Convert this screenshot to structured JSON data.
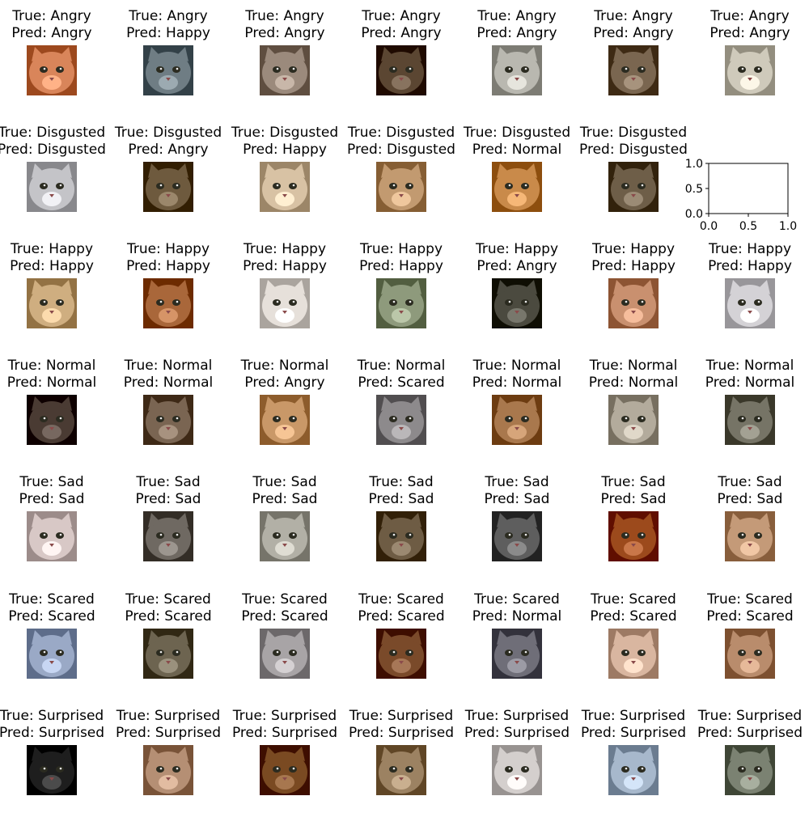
{
  "true_prefix": "True: ",
  "pred_prefix": "Pred: ",
  "rows": [
    {
      "true_label": "Angry",
      "preds": [
        "Angry",
        "Happy",
        "Angry",
        "Angry",
        "Angry",
        "Angry",
        "Angry"
      ],
      "colors": [
        "#d9855a",
        "#6f7d84",
        "#9b8a7c",
        "#5b4632",
        "#b9b8b0",
        "#7a6650",
        "#cfcabb"
      ]
    },
    {
      "true_label": "Disgusted",
      "preds": [
        "Disgusted",
        "Angry",
        "Happy",
        "Disgusted",
        "Normal",
        "Disgusted",
        null
      ],
      "colors": [
        "#c4c4c8",
        "#6e5a3e",
        "#d8c2a4",
        "#c29a70",
        "#c98a4a",
        "#6e5e48",
        null
      ]
    },
    {
      "true_label": "Happy",
      "preds": [
        "Happy",
        "Happy",
        "Happy",
        "Happy",
        "Angry",
        "Happy",
        "Happy"
      ],
      "colors": [
        "#cfae80",
        "#a9673a",
        "#e6e0da",
        "#8e9a7c",
        "#4b4a3f",
        "#c9906f",
        "#d4d2d6"
      ]
    },
    {
      "true_label": "Normal",
      "preds": [
        "Normal",
        "Normal",
        "Angry",
        "Scared",
        "Normal",
        "Normal",
        "Normal"
      ],
      "colors": [
        "#4a3b33",
        "#7a6552",
        "#c99868",
        "#8d8a8c",
        "#a9784d",
        "#b3ab9c",
        "#767466"
      ]
    },
    {
      "true_label": "Sad",
      "preds": [
        "Sad",
        "Sad",
        "Sad",
        "Sad",
        "Sad",
        "Sad",
        "Sad"
      ],
      "colors": [
        "#d8c8c6",
        "#6f6962",
        "#b2b0a6",
        "#6e5c44",
        "#5e5e5e",
        "#9c4a1c",
        "#c49a78"
      ]
    },
    {
      "true_label": "Scared",
      "preds": [
        "Scared",
        "Scared",
        "Scared",
        "Scared",
        "Normal",
        "Scared",
        "Scared"
      ],
      "colors": [
        "#9aa9c6",
        "#6d6450",
        "#a8a4a6",
        "#7a4a2a",
        "#6f6e78",
        "#d9b6a0",
        "#b98c6c"
      ]
    },
    {
      "true_label": "Surprised",
      "preds": [
        "Surprised",
        "Surprised",
        "Surprised",
        "Surprised",
        "Surprised",
        "Surprised",
        "Surprised"
      ],
      "colors": [
        "#1e1e1e",
        "#b58f74",
        "#7a4a22",
        "#9c8262",
        "#d4cfcd",
        "#a7b8cc",
        "#7b8272"
      ]
    }
  ],
  "empty_axes": {
    "x_ticks": [
      "0.0",
      "0.5",
      "1.0"
    ],
    "y_ticks": [
      "0.0",
      "0.5",
      "1.0"
    ]
  }
}
